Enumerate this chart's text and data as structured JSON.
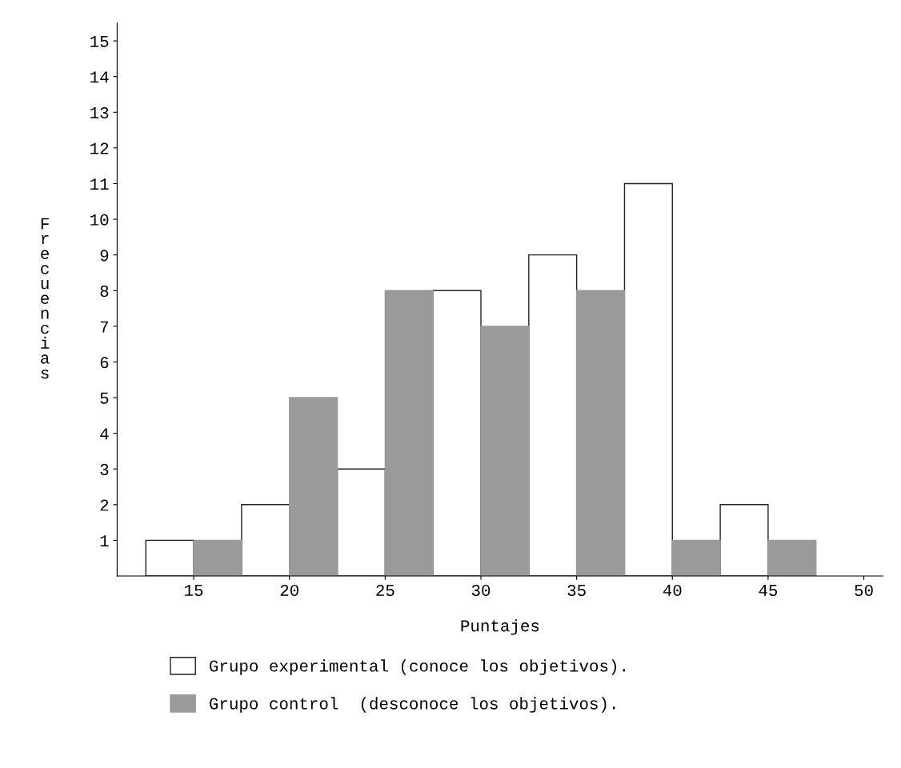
{
  "chart_data": {
    "type": "bar",
    "xlabel": "Puntajes",
    "ylabel": "Frecuencias",
    "series": [
      {
        "name": "Grupo experimental (conoce los objetivos).",
        "color": "#ffffff",
        "x": [
          13.75,
          18.75,
          23.75,
          28.75,
          33.75,
          38.75,
          43.75
        ],
        "values": [
          1,
          2,
          3,
          8,
          9,
          11,
          2
        ]
      },
      {
        "name": "Grupo control  (desconoce los objetivos).",
        "color": "#9a9a9a",
        "x": [
          16.25,
          21.25,
          26.25,
          31.25,
          36.25,
          41.25,
          46.25
        ],
        "values": [
          1,
          5,
          8,
          7,
          8,
          1,
          1
        ]
      }
    ],
    "xlim": [
      11,
      51
    ],
    "xticks": [
      15,
      20,
      25,
      30,
      35,
      40,
      45,
      50
    ],
    "ylim": [
      0,
      15.5
    ],
    "yticks": [
      1,
      2,
      3,
      4,
      5,
      6,
      7,
      8,
      9,
      10,
      11,
      12,
      13,
      14,
      15
    ],
    "legend": "bottom",
    "grid": false
  }
}
